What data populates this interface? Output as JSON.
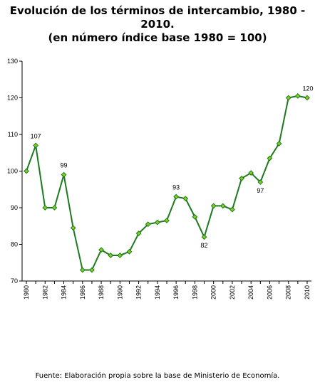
{
  "title_lines": [
    "Evolución de los términos de intercambio, 1980 -",
    "2010.",
    "(en número índice base 1980 = 100)"
  ],
  "footer": "Fuente: Elaboración propia sobre la base de Ministerio de Economía.",
  "chart_data": {
    "type": "line",
    "title": "Evolución de los términos de intercambio, 1980 - 2010. (en número índice base 1980 = 100)",
    "xlabel": "",
    "ylabel": "",
    "ylim": [
      70,
      130
    ],
    "yticks": [
      70,
      80,
      90,
      100,
      110,
      120,
      130
    ],
    "xticks": [
      1980,
      1982,
      1984,
      1986,
      1988,
      1990,
      1992,
      1994,
      1996,
      1998,
      2000,
      2002,
      2004,
      2006,
      2008,
      2010
    ],
    "grid": false,
    "legend": "none",
    "line_color": "#1f7a1f",
    "marker_color": "#7fd11f",
    "series": [
      {
        "x": [
          1980,
          1981,
          1982,
          1983,
          1984,
          1985,
          1986,
          1987,
          1988,
          1989,
          1990,
          1991,
          1992,
          1993,
          1994,
          1995,
          1996,
          1997,
          1998,
          1999,
          2000,
          2001,
          2002,
          2003,
          2004,
          2005,
          2006,
          2007,
          2008,
          2009,
          2010
        ],
        "values": [
          100,
          107,
          90,
          90,
          99,
          84.5,
          73,
          73,
          78.5,
          77,
          77,
          78,
          83,
          85.5,
          86,
          86.5,
          93,
          92.5,
          87.5,
          82,
          90.5,
          90.5,
          89.5,
          98,
          99.5,
          97,
          103.5,
          107.5,
          120,
          120.5,
          120
        ]
      }
    ],
    "annotations": [
      {
        "x": 1981,
        "text": "107"
      },
      {
        "x": 1984,
        "text": "99"
      },
      {
        "x": 1996,
        "text": "93"
      },
      {
        "x": 1999,
        "text": "82"
      },
      {
        "x": 2005,
        "text": "97"
      },
      {
        "x": 2010,
        "text": "120"
      }
    ]
  }
}
